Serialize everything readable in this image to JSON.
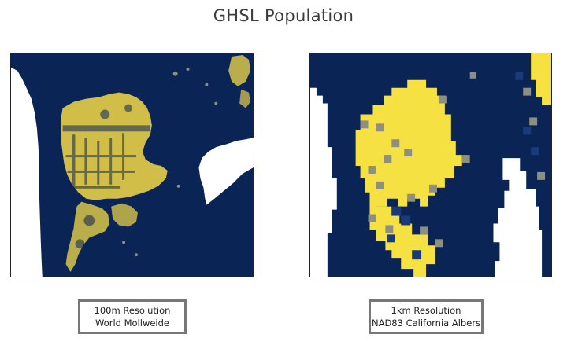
{
  "title": "GHSL Population",
  "maps": [
    {
      "caption_line1": "100m Resolution",
      "caption_line2": "World Mollweide"
    },
    {
      "caption_line1": "1km Resolution",
      "caption_line2": "NAD83 California Albers"
    }
  ],
  "colors": {
    "background": "#0b2456",
    "population_high": "#f5e142",
    "population_mid": "#8d8f80",
    "population_low": "#1a3a7c",
    "nodata": "#ffffff"
  }
}
